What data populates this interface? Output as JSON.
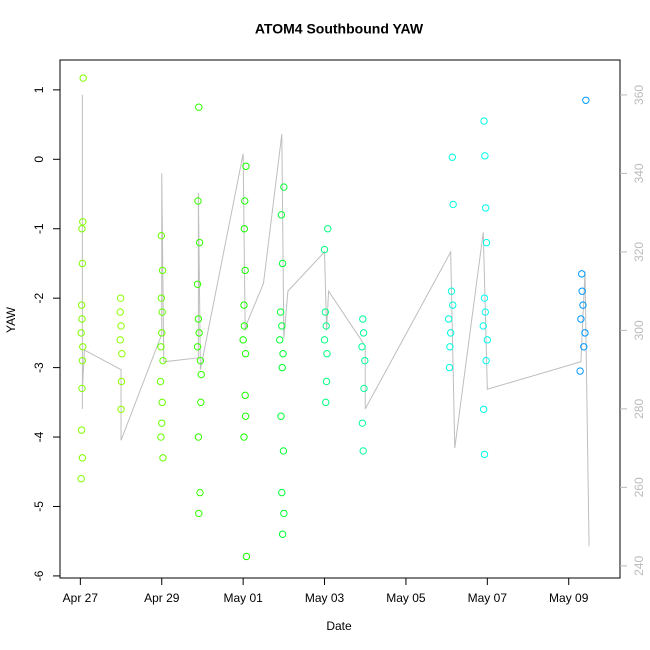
{
  "chart_data": {
    "type": "scatter",
    "title": "ATOM4 Southbound YAW",
    "x_label": "Date",
    "y_label": "YAW",
    "xlim": [
      26.5,
      40.26
    ],
    "ylim": [
      -6.03,
      1.43
    ],
    "y2lim": [
      236.9,
      368.9
    ],
    "xticks": [
      {
        "value": 27,
        "label": "Apr 27"
      },
      {
        "value": 29,
        "label": "Apr 29"
      },
      {
        "value": 31,
        "label": "May 01"
      },
      {
        "value": 33,
        "label": "May 03"
      },
      {
        "value": 35,
        "label": "May 05"
      },
      {
        "value": 37,
        "label": "May 07"
      },
      {
        "value": 39,
        "label": "May 09"
      }
    ],
    "yticks": [
      -6,
      -5,
      -4,
      -3,
      -2,
      -1,
      0,
      1
    ],
    "y2ticks": [
      240,
      260,
      280,
      300,
      320,
      340,
      360
    ],
    "line_color": "#bebebe",
    "series": [
      {
        "color": "#80ff00",
        "x": [
          27.02,
          27.04,
          27.06,
          27.03,
          27.05,
          27.04,
          27.06,
          27.03,
          27.05,
          27.02,
          27.07,
          27.04,
          27.05
        ],
        "values": [
          -2.5,
          -2.3,
          -2.7,
          -2.1,
          -2.9,
          -1.0,
          -0.9,
          -3.9,
          -4.3,
          -4.6,
          1.17,
          -3.3,
          -1.5
        ]
      },
      {
        "color": "#8cff00",
        "x": [
          27.98,
          28.0,
          28.02,
          27.99,
          28.01,
          28.0,
          27.98
        ],
        "values": [
          -2.6,
          -2.4,
          -2.8,
          -2.0,
          -3.2,
          -3.6,
          -2.2
        ]
      },
      {
        "color": "#66ff00",
        "x": [
          28.98,
          29.0,
          29.03,
          28.97,
          29.01,
          28.99,
          29.02,
          29.0,
          28.98,
          29.03,
          29.01,
          28.99
        ],
        "values": [
          -2.7,
          -2.5,
          -2.9,
          -3.2,
          -2.2,
          -1.1,
          -1.6,
          -3.8,
          -4.0,
          -4.3,
          -3.5,
          -2.0
        ]
      },
      {
        "color": "#33ff00",
        "x": [
          29.88,
          29.92,
          29.95,
          29.9,
          29.97,
          29.91,
          29.89,
          29.93,
          29.9,
          29.94,
          29.91,
          29.96,
          29.88
        ],
        "values": [
          -2.7,
          -2.5,
          -2.9,
          -2.3,
          -3.1,
          0.75,
          -0.6,
          -1.2,
          -4.0,
          -4.8,
          -5.1,
          -3.5,
          -1.8
        ]
      },
      {
        "color": "#1aff00",
        "x": [
          31.0,
          31.03,
          31.06,
          31.02,
          31.05,
          31.07,
          31.04,
          31.03,
          31.06,
          31.02,
          31.08,
          31.05
        ],
        "values": [
          -2.6,
          -2.4,
          -2.8,
          -2.1,
          -3.4,
          -0.1,
          -0.6,
          -1.0,
          -3.7,
          -4.0,
          -5.72,
          -1.6
        ]
      },
      {
        "color": "#00ff33",
        "x": [
          31.9,
          31.95,
          31.98,
          31.92,
          31.96,
          32.0,
          31.94,
          31.97,
          31.93,
          31.99,
          31.95,
          31.97,
          32.0
        ],
        "values": [
          -2.6,
          -2.4,
          -2.8,
          -2.2,
          -3.0,
          -0.4,
          -0.8,
          -1.5,
          -3.7,
          -4.2,
          -4.8,
          -5.4,
          -5.1
        ]
      },
      {
        "color": "#00ff80",
        "x": [
          33.0,
          33.04,
          33.06,
          33.02,
          33.05,
          33.08,
          33.0,
          33.03
        ],
        "values": [
          -2.6,
          -2.4,
          -2.8,
          -2.2,
          -3.2,
          -1.0,
          -1.3,
          -3.5
        ]
      },
      {
        "color": "#00ff99",
        "x": [
          33.92,
          33.96,
          33.99,
          33.94,
          33.97,
          33.93,
          33.95
        ],
        "values": [
          -2.7,
          -2.5,
          -2.9,
          -2.3,
          -3.3,
          -3.8,
          -4.2
        ]
      },
      {
        "color": "#00ffdd",
        "x": [
          36.05,
          36.1,
          36.15,
          36.08,
          36.12,
          36.14,
          36.16,
          36.07
        ],
        "values": [
          -2.3,
          -2.5,
          -2.1,
          -2.7,
          -1.9,
          0.03,
          -0.65,
          -3.0
        ]
      },
      {
        "color": "#00ffee",
        "x": [
          36.9,
          36.95,
          37.0,
          36.93,
          36.97,
          36.92,
          36.94,
          36.96,
          36.98,
          36.91,
          36.93
        ],
        "values": [
          -2.4,
          -2.2,
          -2.6,
          -2.0,
          -2.9,
          0.55,
          0.05,
          -0.7,
          -1.2,
          -3.6,
          -4.25
        ]
      },
      {
        "color": "#0099ff",
        "x": [
          39.3,
          39.35,
          39.4,
          39.33,
          39.37,
          39.32,
          39.42,
          39.28
        ],
        "values": [
          -2.3,
          -2.1,
          -2.5,
          -1.9,
          -2.7,
          -1.65,
          0.85,
          -3.05
        ]
      }
    ],
    "line": {
      "axis": "y2",
      "x": [
        27.05,
        27.05,
        27.05,
        27.1,
        28.0,
        28.0,
        29.0,
        29.0,
        29.05,
        29.9,
        29.9,
        29.95,
        31.0,
        31.05,
        31.1,
        31.5,
        31.95,
        32.0,
        32.1,
        33.0,
        33.05,
        33.1,
        34.0,
        34.0,
        36.1,
        36.2,
        36.9,
        37.0,
        39.3,
        39.4,
        39.5
      ],
      "values": [
        280,
        360,
        285,
        295,
        290,
        272,
        299,
        340,
        292,
        293,
        335,
        290,
        345,
        300,
        302,
        312,
        350,
        298,
        310,
        320,
        300,
        310,
        296,
        280,
        320,
        270,
        325,
        285,
        292,
        315,
        245
      ]
    }
  }
}
